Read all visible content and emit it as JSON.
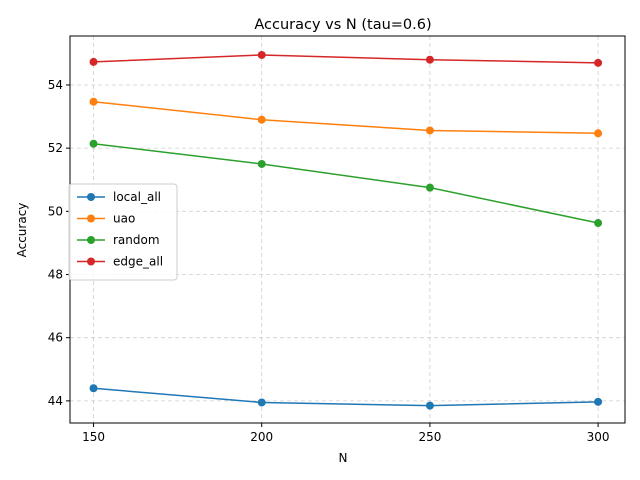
{
  "chart_data": {
    "type": "line",
    "title": "Accuracy vs N (tau=0.6)",
    "xlabel": "N",
    "ylabel": "Accuracy",
    "x": [
      150,
      200,
      250,
      300
    ],
    "xticks": [
      150,
      200,
      250,
      300
    ],
    "xlim": [
      143,
      308
    ],
    "yticks": [
      44,
      46,
      48,
      50,
      52,
      54
    ],
    "ylim": [
      43.3,
      55.55
    ],
    "grid": true,
    "legend": "center-left",
    "series": [
      {
        "name": "local_all",
        "color": "#1f77b4",
        "values": [
          44.4,
          43.95,
          43.85,
          43.97
        ]
      },
      {
        "name": "uao",
        "color": "#ff7f0e",
        "values": [
          53.47,
          52.9,
          52.56,
          52.47
        ]
      },
      {
        "name": "random",
        "color": "#2ca02c",
        "values": [
          52.14,
          51.5,
          50.75,
          49.63
        ]
      },
      {
        "name": "edge_all",
        "color": "#d62728",
        "values": [
          54.73,
          54.95,
          54.8,
          54.7
        ]
      }
    ]
  }
}
